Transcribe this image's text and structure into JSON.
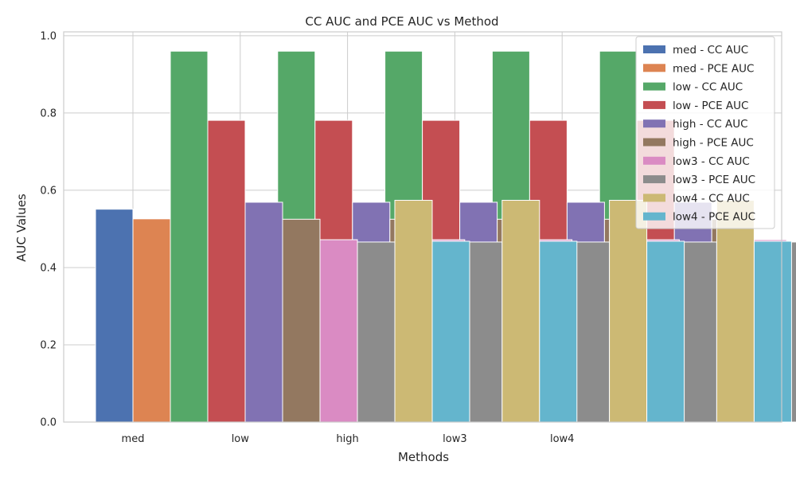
{
  "chart_data": {
    "type": "bar",
    "title": "CC AUC and PCE AUC vs Method",
    "xlabel": "Methods",
    "ylabel": "AUC Values",
    "categories": [
      "med",
      "low",
      "high",
      "low3",
      "low4"
    ],
    "ylim": [
      0,
      1.01
    ],
    "yticks": [
      "0.0",
      "0.2",
      "0.4",
      "0.6",
      "0.8",
      "1.0"
    ],
    "grid": true,
    "legend_position": "top-right",
    "series": [
      {
        "name": "med - CC AUC",
        "color": "#4c72b0",
        "values": [
          0.551,
          0.551,
          0.551,
          0.551,
          0.551
        ]
      },
      {
        "name": "med - PCE AUC",
        "color": "#dd8452",
        "values": [
          0.526,
          0.526,
          0.526,
          0.526,
          0.526
        ]
      },
      {
        "name": "low - CC AUC",
        "color": "#55a868",
        "values": [
          0.96,
          0.96,
          0.96,
          0.96,
          0.96
        ]
      },
      {
        "name": "low - PCE AUC",
        "color": "#c44e52",
        "values": [
          0.781,
          0.781,
          0.781,
          0.781,
          0.781
        ]
      },
      {
        "name": "high - CC AUC",
        "color": "#8172b3",
        "values": [
          0.569,
          0.569,
          0.569,
          0.569,
          0.569
        ]
      },
      {
        "name": "high - PCE AUC",
        "color": "#937860",
        "values": [
          0.525,
          0.525,
          0.525,
          0.525,
          0.525
        ]
      },
      {
        "name": "low3 - CC AUC",
        "color": "#da8bc3",
        "values": [
          0.472,
          0.472,
          0.472,
          0.472,
          0.472
        ]
      },
      {
        "name": "low3 - PCE AUC",
        "color": "#8c8c8c",
        "values": [
          0.466,
          0.466,
          0.466,
          0.466,
          0.466
        ]
      },
      {
        "name": "low4 - CC AUC",
        "color": "#ccb974",
        "values": [
          0.574,
          0.574,
          0.574,
          0.574,
          0.574
        ]
      },
      {
        "name": "low4 - PCE AUC",
        "color": "#64b5cd",
        "values": [
          0.468,
          0.468,
          0.468,
          0.468,
          0.468
        ]
      }
    ]
  }
}
